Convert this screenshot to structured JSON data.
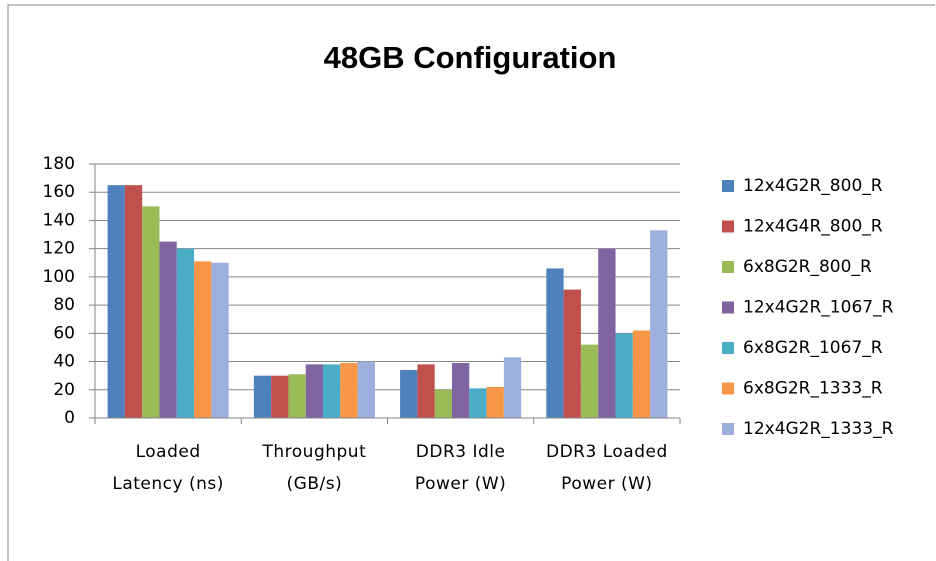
{
  "chart_data": {
    "type": "bar",
    "title": "48GB Configuration",
    "categories": [
      "Loaded Latency (ns)",
      "Throughput (GB/s)",
      "DDR3 Idle Power (W)",
      "DDR3 Loaded Power (W)"
    ],
    "series": [
      {
        "name": "12x4G2R_800_R",
        "color": "#4f81bd",
        "values": [
          165,
          30,
          34,
          106
        ]
      },
      {
        "name": "12x4G4R_800_R",
        "color": "#c0504d",
        "values": [
          165,
          30,
          38,
          91
        ]
      },
      {
        "name": "6x8G2R_800_R",
        "color": "#9bbb59",
        "values": [
          150,
          31,
          20,
          52
        ]
      },
      {
        "name": "12x4G2R_1067_R",
        "color": "#8064a2",
        "values": [
          125,
          38,
          39,
          120
        ]
      },
      {
        "name": "6x8G2R_1067_R",
        "color": "#4bacc6",
        "values": [
          120,
          38,
          21,
          60
        ]
      },
      {
        "name": "6x8G2R_1333_R",
        "color": "#f79646",
        "values": [
          111,
          39,
          22,
          62
        ]
      },
      {
        "name": "12x4G2R_1333_R",
        "color": "#9dafdc",
        "values": [
          110,
          40,
          43,
          133
        ]
      }
    ],
    "ylim": [
      0,
      180
    ],
    "yticks": [
      0,
      20,
      40,
      60,
      80,
      100,
      120,
      140,
      160,
      180
    ],
    "grid": true,
    "legend": "right"
  }
}
